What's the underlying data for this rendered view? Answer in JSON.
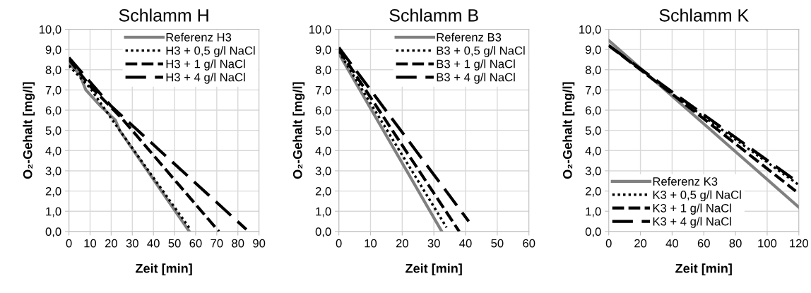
{
  "chart_data": [
    {
      "type": "line",
      "title": "Schlamm H",
      "xlabel": "Zeit [min]",
      "ylabel": "O₂-Gehalt [mg/l]",
      "xlim": [
        0,
        90
      ],
      "xticks": [
        0,
        10,
        20,
        30,
        40,
        50,
        60,
        70,
        80,
        90
      ],
      "ylim": [
        0,
        10
      ],
      "yticks": [
        {
          "value": 0,
          "label": "0,0"
        },
        {
          "value": 1,
          "label": "1,0"
        },
        {
          "value": 2,
          "label": "2,0"
        },
        {
          "value": 3,
          "label": "3,0"
        },
        {
          "value": 4,
          "label": "4,0"
        },
        {
          "value": 5,
          "label": "5,0"
        },
        {
          "value": 6,
          "label": "6,0"
        },
        {
          "value": 7,
          "label": "7,0"
        },
        {
          "value": 8,
          "label": "8,0"
        },
        {
          "value": 9,
          "label": "9,0"
        },
        {
          "value": 10,
          "label": "10,0"
        }
      ],
      "grid": true,
      "legend": "top right",
      "series": [
        {
          "name": "Referenz H3",
          "color": "#808080",
          "line_style": "solid",
          "x": [
            0,
            5,
            8,
            15,
            22,
            24,
            57
          ],
          "values": [
            8.3,
            7.8,
            7.0,
            6.2,
            5.5,
            5.0,
            0
          ]
        },
        {
          "name": "H3 + 0,5 g/l NaCl",
          "color": "#000000",
          "line_style": "dotted",
          "x": [
            0,
            10,
            22,
            57.5
          ],
          "values": [
            8.2,
            7.1,
            5.3,
            0.1
          ]
        },
        {
          "name": "H3 + 1 g/l NaCl",
          "color": "#000000",
          "line_style": "dashed",
          "x": [
            0,
            10,
            25,
            71
          ],
          "values": [
            8.5,
            7.2,
            5.6,
            0
          ]
        },
        {
          "name": "H3 + 4 g/l NaCl",
          "color": "#000000",
          "line_style": "longdashed",
          "x": [
            0,
            5,
            20,
            84
          ],
          "values": [
            8.6,
            8.0,
            6.2,
            0.1
          ]
        }
      ]
    },
    {
      "type": "line",
      "title": "Schlamm B",
      "xlabel": "Zeit [min]",
      "ylabel": "O₂-Gehalt [mg/l]",
      "xlim": [
        0,
        60
      ],
      "xticks": [
        0,
        10,
        20,
        30,
        40,
        50,
        60
      ],
      "ylim": [
        0,
        10
      ],
      "yticks": [
        {
          "value": 0,
          "label": "0,0"
        },
        {
          "value": 1,
          "label": "1,0"
        },
        {
          "value": 2,
          "label": "2,0"
        },
        {
          "value": 3,
          "label": "3,0"
        },
        {
          "value": 4,
          "label": "4,0"
        },
        {
          "value": 5,
          "label": "5,0"
        },
        {
          "value": 6,
          "label": "6,0"
        },
        {
          "value": 7,
          "label": "7,0"
        },
        {
          "value": 8,
          "label": "8,0"
        },
        {
          "value": 9,
          "label": "9,0"
        },
        {
          "value": 10,
          "label": "10,0"
        }
      ],
      "grid": true,
      "legend": "top right",
      "series": [
        {
          "name": "Referenz B3",
          "color": "#808080",
          "line_style": "solid",
          "x": [
            0,
            32.5
          ],
          "values": [
            8.8,
            0
          ]
        },
        {
          "name": "B3 + 0,5 g/l NaCl",
          "color": "#000000",
          "line_style": "dotted",
          "x": [
            0,
            34
          ],
          "values": [
            8.9,
            0.2
          ]
        },
        {
          "name": "B3 + 1 g/l NaCl",
          "color": "#000000",
          "line_style": "dashed",
          "x": [
            0,
            38
          ],
          "values": [
            9.0,
            0
          ]
        },
        {
          "name": "B3 + 4 g/l NaCl",
          "color": "#000000",
          "line_style": "longdashed",
          "x": [
            0,
            41
          ],
          "values": [
            9.1,
            0.5
          ]
        }
      ]
    },
    {
      "type": "line",
      "title": "Schlamm K",
      "xlabel": "Zeit [min]",
      "ylabel": "O₂-Gehalt [mg/l]",
      "xlim": [
        0,
        120
      ],
      "xticks": [
        0,
        20,
        40,
        60,
        80,
        100,
        120
      ],
      "ylim": [
        0,
        10
      ],
      "yticks": [
        {
          "value": 0,
          "label": "0,0"
        },
        {
          "value": 1,
          "label": "1,0"
        },
        {
          "value": 2,
          "label": "2,0"
        },
        {
          "value": 3,
          "label": "3,0"
        },
        {
          "value": 4,
          "label": "4,0"
        },
        {
          "value": 5,
          "label": "5,0"
        },
        {
          "value": 6,
          "label": "6,0"
        },
        {
          "value": 7,
          "label": "7,0"
        },
        {
          "value": 8,
          "label": "8,0"
        },
        {
          "value": 9,
          "label": "9,0"
        },
        {
          "value": 10,
          "label": "10,0"
        }
      ],
      "grid": true,
      "legend": "bottom left",
      "series": [
        {
          "name": "Referenz K3",
          "color": "#808080",
          "line_style": "solid",
          "x": [
            0,
            120
          ],
          "values": [
            9.45,
            1.2
          ]
        },
        {
          "name": "K3 + 0,5 g/l NaCl",
          "color": "#000000",
          "line_style": "dotted",
          "x": [
            0,
            40,
            120
          ],
          "values": [
            9.2,
            6.8,
            2.3
          ]
        },
        {
          "name": "K3 + 1 g/l NaCl",
          "color": "#000000",
          "line_style": "dashed",
          "x": [
            0,
            40,
            118
          ],
          "values": [
            9.2,
            6.8,
            2.0
          ]
        },
        {
          "name": "K3 + 4 g/l NaCl",
          "color": "#000000",
          "line_style": "longdashed",
          "x": [
            0,
            40,
            120
          ],
          "values": [
            9.2,
            6.9,
            2.4
          ]
        }
      ]
    }
  ]
}
